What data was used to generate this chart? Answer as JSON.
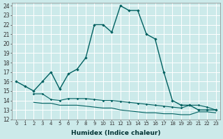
{
  "xlabel": "Humidex (Indice chaleur)",
  "bg_color": "#cceaea",
  "grid_color": "#ffffff",
  "line_color": "#006060",
  "xlim": [
    -0.5,
    23.5
  ],
  "ylim": [
    12,
    24.3
  ],
  "yticks": [
    12,
    13,
    14,
    15,
    16,
    17,
    18,
    19,
    20,
    21,
    22,
    23,
    24
  ],
  "xticks": [
    0,
    1,
    2,
    3,
    4,
    5,
    6,
    7,
    8,
    9,
    10,
    11,
    12,
    13,
    14,
    15,
    16,
    17,
    18,
    19,
    20,
    21,
    22,
    23
  ],
  "line1_x": [
    0,
    1,
    2,
    3,
    4,
    5,
    6,
    7,
    8,
    9,
    10,
    11,
    12,
    13,
    14,
    15,
    16,
    17,
    18,
    19,
    20,
    21,
    22,
    23
  ],
  "line1_y": [
    16.0,
    15.5,
    15.0,
    16.0,
    17.0,
    15.2,
    16.8,
    17.3,
    18.5,
    22.0,
    22.0,
    21.2,
    24.0,
    23.5,
    23.5,
    21.0,
    20.5,
    17.0,
    14.0,
    13.5,
    13.5,
    13.0,
    13.0,
    13.0
  ],
  "line2_x": [
    2,
    3,
    4,
    5,
    6,
    7,
    8,
    9,
    10,
    11,
    12,
    13,
    14,
    15,
    16,
    17,
    18,
    19,
    20,
    21,
    22,
    23
  ],
  "line2_y": [
    14.7,
    14.7,
    14.1,
    14.0,
    14.2,
    14.2,
    14.2,
    14.1,
    14.0,
    14.0,
    13.9,
    13.8,
    13.7,
    13.6,
    13.5,
    13.4,
    13.3,
    13.2,
    13.5,
    13.5,
    13.3,
    13.0
  ],
  "line3_x": [
    2,
    3,
    4,
    5,
    6,
    7,
    8,
    9,
    10,
    11,
    12,
    13,
    14,
    15,
    16,
    17,
    18,
    19,
    20,
    21,
    22,
    23
  ],
  "line3_y": [
    13.8,
    13.7,
    13.7,
    13.5,
    13.5,
    13.5,
    13.4,
    13.3,
    13.2,
    13.2,
    13.0,
    12.9,
    12.8,
    12.7,
    12.7,
    12.6,
    12.6,
    12.5,
    12.5,
    12.8,
    12.8,
    12.7
  ]
}
